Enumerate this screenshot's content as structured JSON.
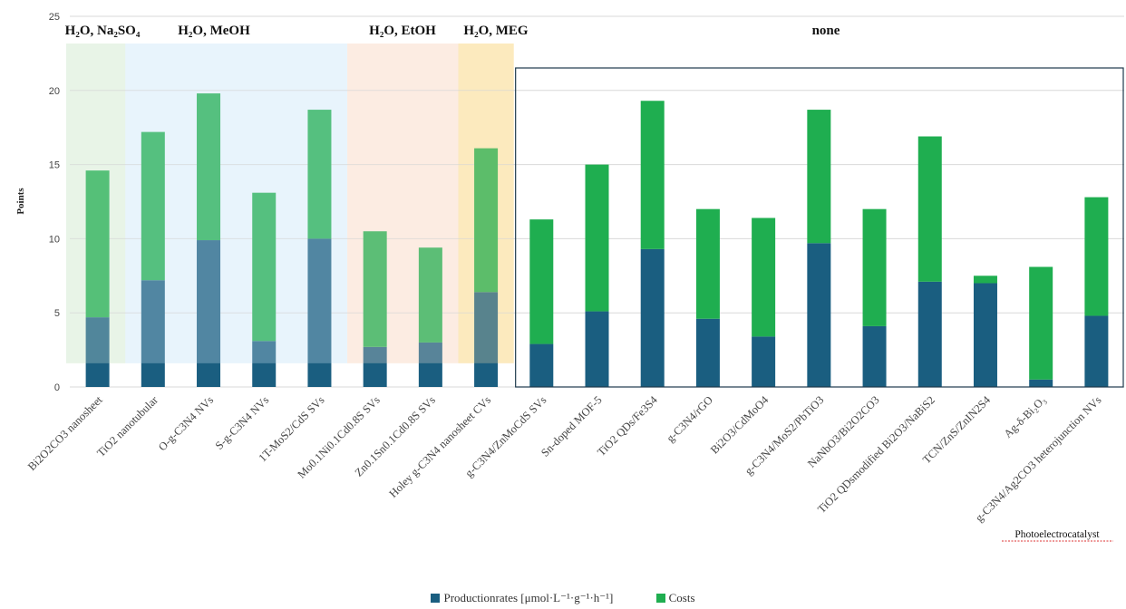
{
  "chart_data": {
    "type": "bar",
    "stacked": true,
    "title": "",
    "xlabel": "",
    "ylabel": "Points",
    "ylim": [
      0,
      25
    ],
    "yticks": [
      0,
      5,
      10,
      15,
      20,
      25
    ],
    "grid": true,
    "legend_position": "bottom",
    "categories": [
      "Bi2O2CO3 nanosheet",
      "TiO2 nanotubular",
      "O-g-C3N4 NVs",
      "S-g-C3N4 NVs",
      "1T-MoS2/CdS SVs",
      "Mo0.1Ni0.1Cd0.8S SVs",
      "Zn0.1Sn0.1Cd0.8S SVs",
      "Holey g-C3N4 nanosheet CVs",
      "g-C3N4/ZnMoCdS SVs",
      "Sn-doped MOF-5",
      "TiO2 QDs/Fe3S4",
      "g-C3N4/rGO",
      "Bi2O3/CdMoO4",
      "g-C3N4/MoS2/PbTiO3",
      "NaNbO3/Bi2O2CO3",
      "TiO2 QDsmodified Bi2O3/NaBiS2",
      "TCN/ZnS/ZnIN2S4",
      "Ag-δ-Bi₂O₃",
      "g-C3N4/Ag2CO3 heterojunction NVs"
    ],
    "series": [
      {
        "name": "Productionrates [μmol·L⁻¹·g⁻¹·h⁻¹]",
        "color": "#1a5e80",
        "values": [
          4.7,
          7.2,
          9.9,
          3.1,
          10.0,
          2.7,
          3.0,
          6.4,
          2.9,
          5.1,
          9.3,
          4.6,
          3.4,
          9.7,
          4.1,
          7.1,
          7.0,
          0.5,
          4.8
        ]
      },
      {
        "name": "Costs",
        "color": "#1fae50",
        "values": [
          9.9,
          10.0,
          9.9,
          10.0,
          8.7,
          7.8,
          6.4,
          9.7,
          8.4,
          9.9,
          10.0,
          7.4,
          8.0,
          9.0,
          7.9,
          9.8,
          0.5,
          7.6,
          8.0
        ]
      }
    ],
    "groups": [
      {
        "label": "H₂O, Na₂SO₄",
        "start": 0,
        "end": 0,
        "color": "#e4f2e1"
      },
      {
        "label": "H₂O, MeOH",
        "start": 1,
        "end": 4,
        "color": "#e3f1fb"
      },
      {
        "label": "H₂O, EtOH",
        "start": 5,
        "end": 6,
        "color": "#fbe8dc"
      },
      {
        "label": "H₂O, MEG",
        "start": 7,
        "end": 7,
        "color": "#fce6b0"
      },
      {
        "label": "none",
        "start": 8,
        "end": 18,
        "color": ""
      }
    ],
    "annotation": "Photoelectrocatalyst"
  }
}
